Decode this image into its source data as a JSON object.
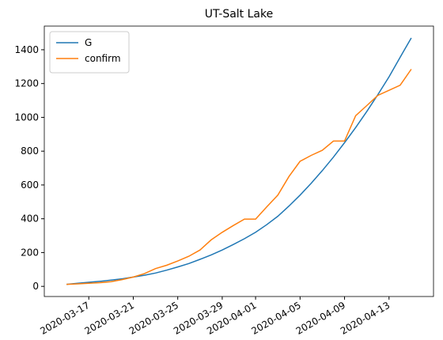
{
  "chart_data": {
    "type": "line",
    "title": "UT-Salt Lake",
    "x": [
      "2020-03-15",
      "2020-03-16",
      "2020-03-17",
      "2020-03-18",
      "2020-03-19",
      "2020-03-20",
      "2020-03-21",
      "2020-03-22",
      "2020-03-23",
      "2020-03-24",
      "2020-03-25",
      "2020-03-26",
      "2020-03-27",
      "2020-03-28",
      "2020-03-29",
      "2020-03-30",
      "2020-03-31",
      "2020-04-01",
      "2020-04-02",
      "2020-04-03",
      "2020-04-04",
      "2020-04-05",
      "2020-04-06",
      "2020-04-07",
      "2020-04-08",
      "2020-04-09",
      "2020-04-10",
      "2020-04-11",
      "2020-04-12",
      "2020-04-13",
      "2020-04-14",
      "2020-04-15"
    ],
    "series": [
      {
        "name": "G",
        "color": "#1f77b4",
        "values": [
          12,
          18,
          24,
          30,
          37,
          45,
          55,
          66,
          79,
          96,
          115,
          135,
          160,
          186,
          215,
          248,
          282,
          320,
          365,
          415,
          475,
          540,
          610,
          685,
          765,
          850,
          940,
          1035,
          1135,
          1240,
          1355,
          1470
        ]
      },
      {
        "name": "confirm",
        "color": "#ff7f0e",
        "values": [
          12,
          15,
          18,
          22,
          28,
          40,
          55,
          75,
          105,
          125,
          150,
          178,
          215,
          275,
          320,
          360,
          398,
          398,
          470,
          540,
          650,
          740,
          775,
          805,
          860,
          860,
          1010,
          1070,
          1130,
          1160,
          1190,
          1285
        ]
      }
    ],
    "xlim": [
      "2020-03-13",
      "2020-04-17"
    ],
    "xticks": [
      "2020-03-17",
      "2020-03-21",
      "2020-03-25",
      "2020-03-29",
      "2020-04-01",
      "2020-04-05",
      "2020-04-09",
      "2020-04-13"
    ],
    "ylim": [
      -60,
      1540
    ],
    "yticks": [
      0,
      200,
      400,
      600,
      800,
      1000,
      1200,
      1400
    ],
    "grid": false,
    "legend": "upper left"
  }
}
